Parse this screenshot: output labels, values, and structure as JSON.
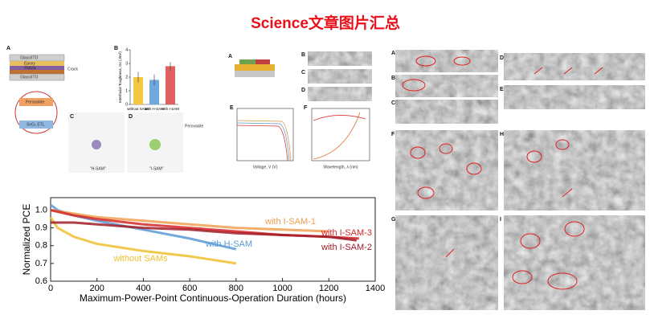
{
  "title": "Science文章图片汇总",
  "panel_labels": [
    "A",
    "B",
    "C",
    "D",
    "A",
    "B",
    "C",
    "D",
    "E",
    "F",
    "A",
    "B",
    "C",
    "D",
    "E",
    "F",
    "H",
    "G",
    "I"
  ],
  "schematic_labels": [
    "Glass/ITO",
    "Epoxy",
    "PMMA",
    "Crack",
    "Glass/ITO",
    "Perovskite",
    "SnO₂ ETL",
    "\"H-SAM\"",
    "\"I-SAM\"",
    "Perovskite",
    "Voltage, V (V)",
    "Wavelength, λ (nm)"
  ],
  "chart_data": [
    {
      "type": "bar",
      "ylabel": "Interfacial Toughness, Gc (J/m²)",
      "categories": [
        "without SAMs",
        "with H-SAM",
        "with I-SAM"
      ],
      "values": [
        2.0,
        1.8,
        2.8
      ],
      "errors": [
        0.4,
        0.4,
        0.3
      ],
      "colors": [
        "#f5c842",
        "#6fa8dc",
        "#e06060"
      ],
      "ylim": [
        0,
        4
      ],
      "yticks": [
        0,
        1,
        2,
        3,
        4
      ]
    },
    {
      "type": "line",
      "xlabel": "Maximum-Power-Point Continuous-Operation Duration (hours)",
      "ylabel": "Normalized PCE",
      "xlim": [
        0,
        1400
      ],
      "ylim": [
        0.6,
        1.07
      ],
      "xticks": [
        0,
        200,
        400,
        600,
        800,
        1000,
        1200,
        1400
      ],
      "yticks": [
        0.6,
        0.7,
        0.8,
        0.9,
        {
          "value": 1.0,
          "label": "1.0"
        }
      ],
      "series": [
        {
          "name": "without SAMs",
          "color": "#f0c030",
          "x": [
            0,
            30,
            100,
            200,
            400,
            600,
            800
          ],
          "values": [
            0.96,
            0.9,
            0.85,
            0.81,
            0.77,
            0.74,
            0.7
          ]
        },
        {
          "name": "with H-SAM",
          "color": "#5b9bd5",
          "x": [
            0,
            30,
            100,
            200,
            400,
            600,
            800
          ],
          "values": [
            1.03,
            1.0,
            0.97,
            0.94,
            0.89,
            0.84,
            0.78
          ]
        },
        {
          "name": "with I-SAM-1",
          "color": "#f0a050",
          "x": [
            0,
            100,
            200,
            400,
            600,
            800,
            1000,
            1200
          ],
          "values": [
            1.0,
            0.98,
            0.96,
            0.94,
            0.92,
            0.9,
            0.89,
            0.88
          ]
        },
        {
          "name": "with I-SAM-3",
          "color": "#d62728",
          "x": [
            0,
            100,
            200,
            400,
            600,
            800,
            1000,
            1200,
            1330
          ],
          "values": [
            1.0,
            0.97,
            0.95,
            0.92,
            0.9,
            0.88,
            0.86,
            0.85,
            0.84
          ]
        },
        {
          "name": "with I-SAM-2",
          "color": "#a01c28",
          "x": [
            0,
            100,
            200,
            400,
            600,
            800,
            1000,
            1200,
            1320
          ],
          "values": [
            0.93,
            0.93,
            0.92,
            0.9,
            0.89,
            0.87,
            0.86,
            0.85,
            0.83
          ]
        }
      ]
    }
  ]
}
